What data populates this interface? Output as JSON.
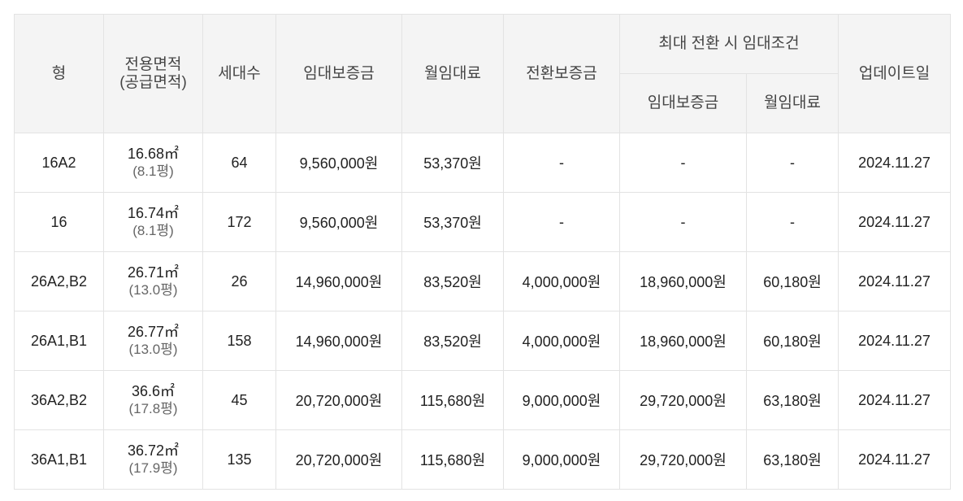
{
  "headers": {
    "type": "형",
    "area_line1": "전용면적",
    "area_line2": "(공급면적)",
    "households": "세대수",
    "deposit": "임대보증금",
    "monthly_rent": "월임대료",
    "conversion_deposit": "전환보증금",
    "max_conversion_group": "최대 전환 시 임대조건",
    "max_deposit": "임대보증금",
    "max_monthly_rent": "월임대료",
    "updated": "업데이트일"
  },
  "rows": [
    {
      "type": "16A2",
      "area": "16.68㎡",
      "supply": "(8.1평)",
      "households": "64",
      "deposit": "9,560,000원",
      "monthly_rent": "53,370원",
      "conversion_deposit": "-",
      "max_deposit": "-",
      "max_monthly_rent": "-",
      "updated": "2024.11.27"
    },
    {
      "type": "16",
      "area": "16.74㎡",
      "supply": "(8.1평)",
      "households": "172",
      "deposit": "9,560,000원",
      "monthly_rent": "53,370원",
      "conversion_deposit": "-",
      "max_deposit": "-",
      "max_monthly_rent": "-",
      "updated": "2024.11.27"
    },
    {
      "type": "26A2,B2",
      "area": "26.71㎡",
      "supply": "(13.0평)",
      "households": "26",
      "deposit": "14,960,000원",
      "monthly_rent": "83,520원",
      "conversion_deposit": "4,000,000원",
      "max_deposit": "18,960,000원",
      "max_monthly_rent": "60,180원",
      "updated": "2024.11.27"
    },
    {
      "type": "26A1,B1",
      "area": "26.77㎡",
      "supply": "(13.0평)",
      "households": "158",
      "deposit": "14,960,000원",
      "monthly_rent": "83,520원",
      "conversion_deposit": "4,000,000원",
      "max_deposit": "18,960,000원",
      "max_monthly_rent": "60,180원",
      "updated": "2024.11.27"
    },
    {
      "type": "36A2,B2",
      "area": "36.6㎡",
      "supply": "(17.8평)",
      "households": "45",
      "deposit": "20,720,000원",
      "monthly_rent": "115,680원",
      "conversion_deposit": "9,000,000원",
      "max_deposit": "29,720,000원",
      "max_monthly_rent": "63,180원",
      "updated": "2024.11.27"
    },
    {
      "type": "36A1,B1",
      "area": "36.72㎡",
      "supply": "(17.9평)",
      "households": "135",
      "deposit": "20,720,000원",
      "monthly_rent": "115,680원",
      "conversion_deposit": "9,000,000원",
      "max_deposit": "29,720,000원",
      "max_monthly_rent": "63,180원",
      "updated": "2024.11.27"
    }
  ]
}
